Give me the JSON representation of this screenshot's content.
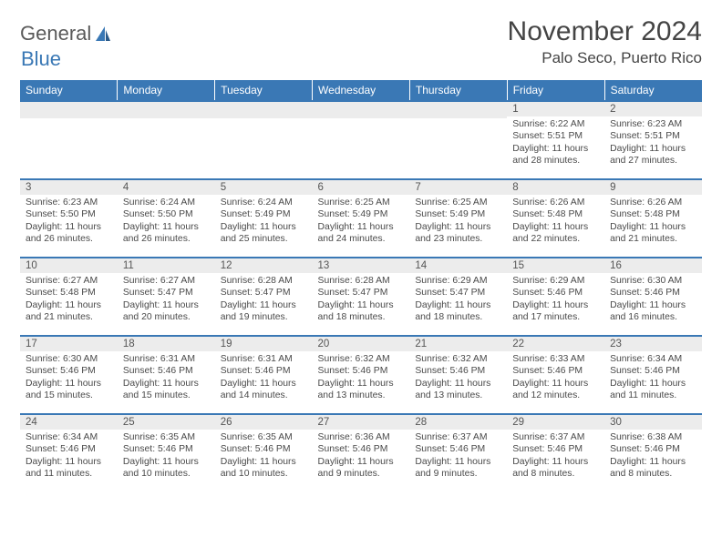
{
  "brand": {
    "part1": "General",
    "part2": "Blue"
  },
  "title": "November 2024",
  "location": "Palo Seco, Puerto Rico",
  "colors": {
    "header_bg": "#3a78b5",
    "daynum_bg": "#ececec",
    "text": "#333333",
    "brand_gray": "#5a5a5a",
    "brand_blue": "#3a78b5"
  },
  "columns": [
    "Sunday",
    "Monday",
    "Tuesday",
    "Wednesday",
    "Thursday",
    "Friday",
    "Saturday"
  ],
  "weeks": [
    [
      {
        "empty": true
      },
      {
        "empty": true
      },
      {
        "empty": true
      },
      {
        "empty": true
      },
      {
        "empty": true
      },
      {
        "n": "1",
        "sr": "Sunrise: 6:22 AM",
        "ss": "Sunset: 5:51 PM",
        "dl": "Daylight: 11 hours and 28 minutes."
      },
      {
        "n": "2",
        "sr": "Sunrise: 6:23 AM",
        "ss": "Sunset: 5:51 PM",
        "dl": "Daylight: 11 hours and 27 minutes."
      }
    ],
    [
      {
        "n": "3",
        "sr": "Sunrise: 6:23 AM",
        "ss": "Sunset: 5:50 PM",
        "dl": "Daylight: 11 hours and 26 minutes."
      },
      {
        "n": "4",
        "sr": "Sunrise: 6:24 AM",
        "ss": "Sunset: 5:50 PM",
        "dl": "Daylight: 11 hours and 26 minutes."
      },
      {
        "n": "5",
        "sr": "Sunrise: 6:24 AM",
        "ss": "Sunset: 5:49 PM",
        "dl": "Daylight: 11 hours and 25 minutes."
      },
      {
        "n": "6",
        "sr": "Sunrise: 6:25 AM",
        "ss": "Sunset: 5:49 PM",
        "dl": "Daylight: 11 hours and 24 minutes."
      },
      {
        "n": "7",
        "sr": "Sunrise: 6:25 AM",
        "ss": "Sunset: 5:49 PM",
        "dl": "Daylight: 11 hours and 23 minutes."
      },
      {
        "n": "8",
        "sr": "Sunrise: 6:26 AM",
        "ss": "Sunset: 5:48 PM",
        "dl": "Daylight: 11 hours and 22 minutes."
      },
      {
        "n": "9",
        "sr": "Sunrise: 6:26 AM",
        "ss": "Sunset: 5:48 PM",
        "dl": "Daylight: 11 hours and 21 minutes."
      }
    ],
    [
      {
        "n": "10",
        "sr": "Sunrise: 6:27 AM",
        "ss": "Sunset: 5:48 PM",
        "dl": "Daylight: 11 hours and 21 minutes."
      },
      {
        "n": "11",
        "sr": "Sunrise: 6:27 AM",
        "ss": "Sunset: 5:47 PM",
        "dl": "Daylight: 11 hours and 20 minutes."
      },
      {
        "n": "12",
        "sr": "Sunrise: 6:28 AM",
        "ss": "Sunset: 5:47 PM",
        "dl": "Daylight: 11 hours and 19 minutes."
      },
      {
        "n": "13",
        "sr": "Sunrise: 6:28 AM",
        "ss": "Sunset: 5:47 PM",
        "dl": "Daylight: 11 hours and 18 minutes."
      },
      {
        "n": "14",
        "sr": "Sunrise: 6:29 AM",
        "ss": "Sunset: 5:47 PM",
        "dl": "Daylight: 11 hours and 18 minutes."
      },
      {
        "n": "15",
        "sr": "Sunrise: 6:29 AM",
        "ss": "Sunset: 5:46 PM",
        "dl": "Daylight: 11 hours and 17 minutes."
      },
      {
        "n": "16",
        "sr": "Sunrise: 6:30 AM",
        "ss": "Sunset: 5:46 PM",
        "dl": "Daylight: 11 hours and 16 minutes."
      }
    ],
    [
      {
        "n": "17",
        "sr": "Sunrise: 6:30 AM",
        "ss": "Sunset: 5:46 PM",
        "dl": "Daylight: 11 hours and 15 minutes."
      },
      {
        "n": "18",
        "sr": "Sunrise: 6:31 AM",
        "ss": "Sunset: 5:46 PM",
        "dl": "Daylight: 11 hours and 15 minutes."
      },
      {
        "n": "19",
        "sr": "Sunrise: 6:31 AM",
        "ss": "Sunset: 5:46 PM",
        "dl": "Daylight: 11 hours and 14 minutes."
      },
      {
        "n": "20",
        "sr": "Sunrise: 6:32 AM",
        "ss": "Sunset: 5:46 PM",
        "dl": "Daylight: 11 hours and 13 minutes."
      },
      {
        "n": "21",
        "sr": "Sunrise: 6:32 AM",
        "ss": "Sunset: 5:46 PM",
        "dl": "Daylight: 11 hours and 13 minutes."
      },
      {
        "n": "22",
        "sr": "Sunrise: 6:33 AM",
        "ss": "Sunset: 5:46 PM",
        "dl": "Daylight: 11 hours and 12 minutes."
      },
      {
        "n": "23",
        "sr": "Sunrise: 6:34 AM",
        "ss": "Sunset: 5:46 PM",
        "dl": "Daylight: 11 hours and 11 minutes."
      }
    ],
    [
      {
        "n": "24",
        "sr": "Sunrise: 6:34 AM",
        "ss": "Sunset: 5:46 PM",
        "dl": "Daylight: 11 hours and 11 minutes."
      },
      {
        "n": "25",
        "sr": "Sunrise: 6:35 AM",
        "ss": "Sunset: 5:46 PM",
        "dl": "Daylight: 11 hours and 10 minutes."
      },
      {
        "n": "26",
        "sr": "Sunrise: 6:35 AM",
        "ss": "Sunset: 5:46 PM",
        "dl": "Daylight: 11 hours and 10 minutes."
      },
      {
        "n": "27",
        "sr": "Sunrise: 6:36 AM",
        "ss": "Sunset: 5:46 PM",
        "dl": "Daylight: 11 hours and 9 minutes."
      },
      {
        "n": "28",
        "sr": "Sunrise: 6:37 AM",
        "ss": "Sunset: 5:46 PM",
        "dl": "Daylight: 11 hours and 9 minutes."
      },
      {
        "n": "29",
        "sr": "Sunrise: 6:37 AM",
        "ss": "Sunset: 5:46 PM",
        "dl": "Daylight: 11 hours and 8 minutes."
      },
      {
        "n": "30",
        "sr": "Sunrise: 6:38 AM",
        "ss": "Sunset: 5:46 PM",
        "dl": "Daylight: 11 hours and 8 minutes."
      }
    ]
  ]
}
